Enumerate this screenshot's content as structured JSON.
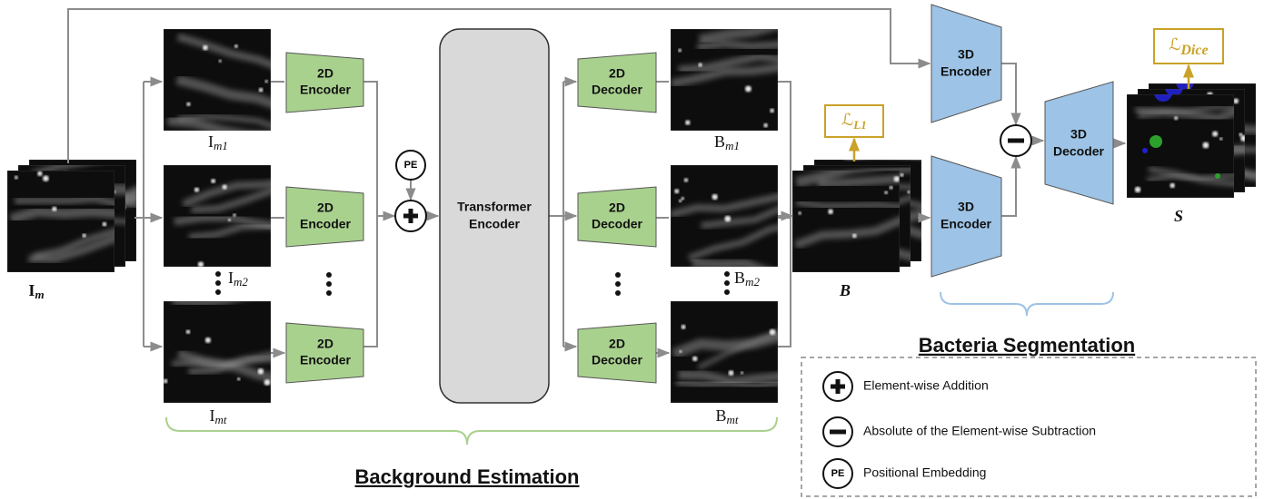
{
  "input": {
    "base": "I",
    "sub": "m"
  },
  "frames": [
    {
      "base": "I",
      "sub": "m1"
    },
    {
      "base": "I",
      "sub": "m2"
    },
    {
      "base": "I",
      "sub": "mt"
    }
  ],
  "encoders_2d": [
    [
      "2D",
      "Encoder"
    ],
    [
      "2D",
      "Encoder"
    ],
    [
      "2D",
      "Encoder"
    ]
  ],
  "pe": "PE",
  "transformer": [
    "Transformer",
    "Encoder"
  ],
  "decoders_2d": [
    [
      "2D",
      "Decoder"
    ],
    [
      "2D",
      "Decoder"
    ],
    [
      "2D",
      "Decoder"
    ]
  ],
  "outputs": [
    {
      "base": "B",
      "sub": "m1"
    },
    {
      "base": "B",
      "sub": "m2"
    },
    {
      "base": "B",
      "sub": "mt"
    }
  ],
  "background": {
    "label": "B",
    "loss": {
      "base": "ℒ",
      "sub": "L1"
    }
  },
  "encoders_3d": [
    [
      "3D",
      "Encoder"
    ],
    [
      "3D",
      "Encoder"
    ]
  ],
  "decoder_3d": [
    "3D",
    "Decoder"
  ],
  "segmentation": {
    "label": "S",
    "loss": {
      "base": "ℒ",
      "sub": "Dice"
    }
  },
  "sections": {
    "background_estimation": "Background Estimation",
    "bacteria_segmentation": "Bacteria Segmentation"
  },
  "legend": [
    {
      "text": "Element-wise Addition"
    },
    {
      "text": "Absolute of the Element-wise Subtraction"
    },
    {
      "icon": "PE",
      "text": "Positional Embedding"
    }
  ]
}
